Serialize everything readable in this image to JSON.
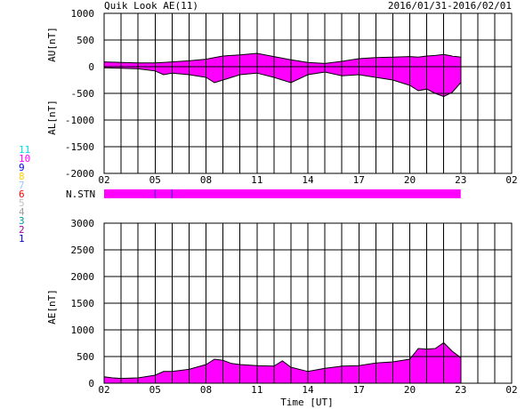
{
  "header": {
    "title": "Quik Look AE(11)",
    "date_range": "2016/01/31-2016/02/01"
  },
  "colors": {
    "fill": "#ff00ff",
    "trace": "#000000",
    "grid": "#000000",
    "stn_mark": "#3030c0"
  },
  "station_legend": [
    {
      "label": "11",
      "color": "#00e0e0"
    },
    {
      "label": "10",
      "color": "#ff00ff"
    },
    {
      "label": "9",
      "color": "#0000ff"
    },
    {
      "label": "8",
      "color": "#ffd000"
    },
    {
      "label": "7",
      "color": "#a0c8ff"
    },
    {
      "label": "6",
      "color": "#ff0000"
    },
    {
      "label": "5",
      "color": "#c0c0c0"
    },
    {
      "label": "4",
      "color": "#a0a0a0"
    },
    {
      "label": "3",
      "color": "#00a0a0"
    },
    {
      "label": "2",
      "color": "#a000a0"
    },
    {
      "label": "1",
      "color": "#0000c0"
    }
  ],
  "nstn_label": "N.STN",
  "x_tick_labels": [
    "02",
    "05",
    "08",
    "11",
    "14",
    "17",
    "20",
    "23",
    "02"
  ],
  "xlabel": "Time [UT]",
  "chart_data": [
    {
      "type": "area",
      "panel": "AU/AL",
      "ylabel_top": "AU[nT]",
      "ylabel_bottom": "AL[nT]",
      "ylim": [
        -2000,
        1000
      ],
      "xlim": [
        2,
        26
      ],
      "yticks": [
        1000,
        500,
        0,
        -500,
        -1000,
        -1500,
        -2000
      ],
      "x": [
        2,
        3,
        4,
        5,
        5.5,
        6,
        7,
        8,
        8.5,
        9,
        10,
        11,
        12,
        13,
        14,
        15,
        16,
        17,
        18,
        19,
        20,
        20.5,
        21,
        21.5,
        22,
        22.5,
        23
      ],
      "series": [
        {
          "name": "AU",
          "values": [
            90,
            80,
            70,
            70,
            80,
            90,
            110,
            140,
            170,
            200,
            220,
            250,
            190,
            130,
            80,
            60,
            100,
            150,
            170,
            180,
            190,
            180,
            200,
            210,
            230,
            200,
            180
          ]
        },
        {
          "name": "AL",
          "values": [
            -20,
            -30,
            -40,
            -80,
            -150,
            -120,
            -150,
            -200,
            -300,
            -250,
            -150,
            -120,
            -200,
            -300,
            -150,
            -100,
            -170,
            -150,
            -200,
            -250,
            -350,
            -450,
            -420,
            -500,
            -560,
            -480,
            -300
          ]
        }
      ]
    },
    {
      "type": "area",
      "panel": "AE",
      "ylabel": "AE[nT]",
      "ylim": [
        0,
        3000
      ],
      "xlim": [
        2,
        26
      ],
      "yticks": [
        0,
        500,
        1000,
        1500,
        2000,
        2500,
        3000
      ],
      "x": [
        2,
        2.5,
        3,
        4,
        5,
        5.5,
        6,
        7,
        8,
        8.5,
        9,
        9.5,
        10,
        11,
        12,
        12.5,
        13,
        14,
        15,
        16,
        17,
        18,
        19,
        20,
        20.5,
        21,
        21.5,
        22,
        22.5,
        23
      ],
      "values": [
        120,
        100,
        90,
        100,
        150,
        220,
        220,
        260,
        350,
        450,
        430,
        370,
        350,
        330,
        320,
        420,
        300,
        220,
        280,
        320,
        330,
        380,
        400,
        450,
        650,
        640,
        650,
        760,
        600,
        480
      ]
    },
    {
      "type": "bar",
      "panel": "N.STN",
      "x_start": 2,
      "x_end": 23,
      "marks": [
        5,
        6
      ]
    }
  ]
}
